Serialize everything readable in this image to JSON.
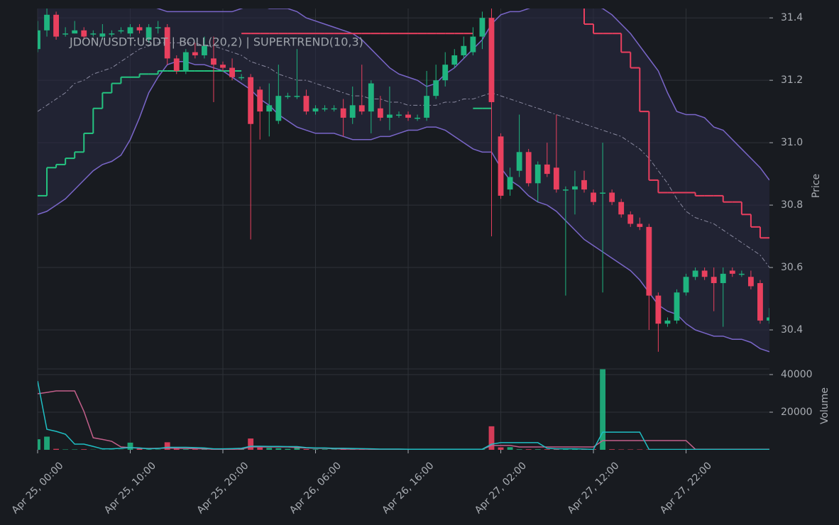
{
  "chart_data": {
    "type": "candlestick",
    "title": "JDON/USDT:USDT | BOLL(20,2) | SUPERTREND(10,3)",
    "x": [
      "Apr 25, 00:00",
      "Apr 25, 01:00",
      "Apr 25, 02:00",
      "Apr 25, 03:00",
      "Apr 25, 04:00",
      "Apr 25, 05:00",
      "Apr 25, 06:00",
      "Apr 25, 07:00",
      "Apr 25, 08:00",
      "Apr 25, 09:00",
      "Apr 25, 10:00",
      "Apr 25, 11:00",
      "Apr 25, 12:00",
      "Apr 25, 13:00",
      "Apr 25, 14:00",
      "Apr 25, 15:00",
      "Apr 25, 16:00",
      "Apr 25, 17:00",
      "Apr 25, 18:00",
      "Apr 25, 19:00",
      "Apr 25, 20:00",
      "Apr 25, 21:00",
      "Apr 25, 22:00",
      "Apr 25, 23:00",
      "Apr 26, 00:00",
      "Apr 26, 01:00",
      "Apr 26, 02:00",
      "Apr 26, 03:00",
      "Apr 26, 04:00",
      "Apr 26, 05:00",
      "Apr 26, 06:00",
      "Apr 26, 07:00",
      "Apr 26, 08:00",
      "Apr 26, 09:00",
      "Apr 26, 10:00",
      "Apr 26, 11:00",
      "Apr 26, 12:00",
      "Apr 26, 13:00",
      "Apr 26, 14:00",
      "Apr 26, 15:00",
      "Apr 26, 16:00",
      "Apr 26, 17:00",
      "Apr 26, 18:00",
      "Apr 26, 19:00",
      "Apr 26, 20:00",
      "Apr 26, 21:00",
      "Apr 26, 22:00",
      "Apr 26, 23:00",
      "Apr 27, 00:00",
      "Apr 27, 01:00",
      "Apr 27, 02:00",
      "Apr 27, 03:00",
      "Apr 27, 04:00",
      "Apr 27, 05:00",
      "Apr 27, 06:00",
      "Apr 27, 07:00",
      "Apr 27, 08:00",
      "Apr 27, 09:00",
      "Apr 27, 10:00",
      "Apr 27, 11:00",
      "Apr 27, 12:00",
      "Apr 27, 13:00",
      "Apr 27, 14:00",
      "Apr 27, 15:00",
      "Apr 27, 16:00",
      "Apr 27, 17:00",
      "Apr 27, 18:00",
      "Apr 27, 19:00",
      "Apr 27, 20:00",
      "Apr 27, 21:00",
      "Apr 27, 22:00",
      "Apr 27, 23:00",
      "Apr 28, 00:00",
      "Apr 28, 01:00",
      "Apr 28, 02:00",
      "Apr 28, 03:00",
      "Apr 28, 04:00",
      "Apr 28, 05:00",
      "Apr 28, 06:00",
      "Apr 28, 07:00"
    ],
    "open": [
      31.3,
      31.36,
      31.41,
      31.35,
      31.35,
      31.36,
      31.35,
      31.34,
      31.35,
      31.36,
      31.35,
      31.37,
      31.33,
      31.37,
      31.37,
      31.27,
      31.23,
      31.29,
      31.28,
      31.27,
      31.25,
      31.24,
      31.21,
      31.21,
      31.17,
      31.1,
      31.07,
      31.15,
      31.15,
      31.15,
      31.1,
      31.11,
      31.11,
      31.11,
      31.08,
      31.12,
      31.1,
      31.11,
      31.08,
      31.09,
      31.09,
      31.08,
      31.08,
      31.15,
      31.2,
      31.25,
      31.28,
      31.29,
      31.34,
      31.4,
      31.02,
      30.85,
      30.91,
      30.97,
      30.87,
      30.93,
      30.92,
      30.85,
      30.85,
      30.88,
      30.84,
      30.84,
      30.84,
      30.81,
      30.77,
      30.74,
      30.73,
      30.51,
      30.42,
      30.43,
      30.52,
      30.57,
      30.59,
      30.57,
      30.55,
      30.59,
      30.58,
      30.57,
      30.55,
      30.43
    ],
    "high": [
      31.39,
      31.43,
      31.42,
      31.37,
      31.39,
      31.37,
      31.36,
      31.38,
      31.36,
      31.37,
      31.38,
      31.38,
      31.38,
      31.39,
      31.38,
      31.28,
      31.3,
      31.32,
      31.34,
      31.34,
      31.26,
      31.27,
      31.22,
      31.22,
      31.18,
      31.19,
      31.25,
      31.16,
      31.3,
      31.17,
      31.12,
      31.12,
      31.12,
      31.14,
      31.18,
      31.25,
      31.2,
      31.15,
      31.18,
      31.1,
      31.1,
      31.09,
      31.23,
      31.25,
      31.29,
      31.3,
      31.34,
      31.37,
      31.42,
      31.43,
      31.03,
      30.92,
      31.09,
      30.98,
      30.94,
      31.0,
      31.09,
      30.86,
      30.91,
      30.91,
      30.85,
      31.0,
      30.85,
      30.82,
      30.78,
      30.76,
      30.74,
      30.52,
      30.44,
      30.53,
      30.58,
      30.6,
      30.6,
      30.6,
      30.6,
      30.6,
      30.59,
      30.59,
      30.56,
      30.47
    ],
    "low": [
      31.29,
      31.34,
      31.33,
      31.34,
      31.35,
      31.33,
      31.34,
      31.33,
      31.34,
      31.35,
      31.34,
      31.35,
      31.32,
      31.35,
      31.25,
      31.22,
      31.22,
      31.27,
      31.27,
      31.13,
      31.23,
      31.2,
      31.2,
      30.69,
      31.01,
      31.02,
      31.06,
      31.14,
      31.14,
      31.09,
      31.09,
      31.1,
      31.1,
      31.02,
      31.06,
      31.09,
      31.03,
      31.07,
      31.04,
      31.08,
      31.07,
      31.07,
      31.07,
      31.14,
      31.18,
      31.24,
      31.27,
      31.28,
      31.3,
      30.7,
      30.82,
      30.83,
      30.89,
      30.86,
      30.81,
      30.89,
      30.84,
      30.51,
      30.77,
      30.84,
      30.8,
      30.52,
      30.8,
      30.76,
      30.73,
      30.72,
      30.4,
      30.33,
      30.41,
      30.42,
      30.51,
      30.56,
      30.56,
      30.46,
      30.41,
      30.57,
      30.57,
      30.53,
      30.42,
      30.42
    ],
    "close": [
      31.36,
      31.41,
      31.34,
      31.35,
      31.36,
      31.34,
      31.35,
      31.35,
      31.35,
      31.36,
      31.37,
      31.36,
      31.37,
      31.37,
      31.27,
      31.23,
      31.29,
      31.28,
      31.31,
      31.25,
      31.24,
      31.21,
      31.21,
      31.06,
      31.1,
      31.12,
      31.15,
      31.15,
      31.15,
      31.1,
      31.11,
      31.11,
      31.11,
      31.08,
      31.12,
      31.1,
      31.19,
      31.08,
      31.09,
      31.09,
      31.08,
      31.08,
      31.15,
      31.2,
      31.25,
      31.28,
      31.31,
      31.34,
      31.4,
      31.13,
      30.83,
      30.89,
      30.97,
      30.87,
      30.93,
      30.9,
      30.85,
      30.85,
      30.86,
      30.85,
      30.81,
      30.84,
      30.81,
      30.77,
      30.74,
      30.73,
      30.51,
      30.42,
      30.43,
      30.52,
      30.57,
      30.59,
      30.57,
      30.55,
      30.58,
      30.58,
      30.58,
      30.54,
      30.43,
      30.44
    ],
    "up_color": "#1fb47f",
    "down_color": "#e9405e",
    "xticks": [
      "Apr 25, 00:00",
      "Apr 25, 10:00",
      "Apr 25, 20:00",
      "Apr 26, 06:00",
      "Apr 26, 16:00",
      "Apr 27, 02:00",
      "Apr 27, 12:00",
      "Apr 27, 22:00"
    ],
    "ylabel": "Price",
    "ylim": [
      30.275,
      31.43
    ],
    "yticks": [
      30.4,
      30.6,
      30.8,
      {
        "value": 31,
        "label": "31.0"
      },
      31.2,
      31.4
    ],
    "grid": true,
    "bollinger": {
      "color": "#7a66c9",
      "fill": "#2a2a44",
      "upper": [
        31.5,
        31.5,
        31.51,
        31.51,
        31.5,
        31.49,
        31.48,
        31.47,
        31.47,
        31.46,
        31.46,
        31.45,
        31.44,
        31.43,
        31.42,
        31.42,
        31.42,
        31.42,
        31.42,
        31.42,
        31.42,
        31.42,
        31.43,
        31.44,
        31.44,
        31.43,
        31.43,
        31.43,
        31.42,
        31.4,
        31.39,
        31.38,
        31.37,
        31.36,
        31.35,
        31.33,
        31.3,
        31.27,
        31.24,
        31.22,
        31.21,
        31.2,
        31.18,
        31.19,
        31.22,
        31.24,
        31.27,
        31.3,
        31.33,
        31.38,
        31.41,
        31.42,
        31.42,
        31.43,
        31.44,
        31.45,
        31.46,
        31.46,
        31.46,
        31.45,
        31.44,
        31.43,
        31.41,
        31.38,
        31.35,
        31.31,
        31.27,
        31.23,
        31.16,
        31.1,
        31.09,
        31.09,
        31.08,
        31.05,
        31.04,
        31.01,
        30.98,
        30.95,
        30.92,
        30.88
      ],
      "middle": [
        31.1,
        31.12,
        31.14,
        31.16,
        31.19,
        31.2,
        31.22,
        31.23,
        31.24,
        31.26,
        31.28,
        31.3,
        31.31,
        31.32,
        31.32,
        31.32,
        31.32,
        31.32,
        31.31,
        31.31,
        31.3,
        31.29,
        31.28,
        31.26,
        31.25,
        31.24,
        31.22,
        31.21,
        31.2,
        31.2,
        31.19,
        31.18,
        31.17,
        31.16,
        31.15,
        31.15,
        31.14,
        31.14,
        31.13,
        31.13,
        31.12,
        31.12,
        31.12,
        31.12,
        31.13,
        31.13,
        31.14,
        31.14,
        31.15,
        31.16,
        31.15,
        31.14,
        31.13,
        31.12,
        31.11,
        31.1,
        31.09,
        31.08,
        31.07,
        31.06,
        31.05,
        31.04,
        31.03,
        31.02,
        31.0,
        30.98,
        30.95,
        30.91,
        30.87,
        30.82,
        30.78,
        30.76,
        30.75,
        30.74,
        30.72,
        30.7,
        30.68,
        30.66,
        30.64,
        30.6
      ],
      "lower": [
        30.77,
        30.78,
        30.8,
        30.82,
        30.85,
        30.88,
        30.91,
        30.93,
        30.94,
        30.96,
        31.01,
        31.08,
        31.16,
        31.21,
        31.25,
        31.26,
        31.26,
        31.25,
        31.25,
        31.24,
        31.23,
        31.21,
        31.19,
        31.17,
        31.14,
        31.12,
        31.09,
        31.07,
        31.05,
        31.04,
        31.03,
        31.03,
        31.03,
        31.02,
        31.01,
        31.01,
        31.01,
        31.02,
        31.02,
        31.03,
        31.04,
        31.04,
        31.05,
        31.05,
        31.04,
        31.02,
        31.0,
        30.98,
        30.97,
        30.97,
        30.92,
        30.88,
        30.86,
        30.83,
        30.81,
        30.8,
        30.78,
        30.75,
        30.72,
        30.69,
        30.67,
        30.65,
        30.63,
        30.61,
        30.59,
        30.56,
        30.52,
        30.48,
        30.46,
        30.45,
        30.42,
        30.4,
        30.39,
        30.38,
        30.38,
        30.37,
        30.37,
        30.36,
        30.34,
        30.33
      ]
    },
    "supertrend": {
      "up_color": "#25c481",
      "down_color": "#ea3f5f",
      "up": [
        30.83,
        30.92,
        30.93,
        30.95,
        30.97,
        31.03,
        31.11,
        31.16,
        31.19,
        31.21,
        31.21,
        31.22,
        31.22,
        31.23,
        31.23,
        31.23,
        31.23,
        31.23,
        31.23,
        31.23,
        31.23,
        31.23,
        null,
        null,
        null,
        null,
        null,
        null,
        null,
        null,
        null,
        null,
        null,
        null,
        null,
        null,
        null,
        null,
        null,
        null,
        null,
        null,
        null,
        null,
        null,
        null,
        null,
        31.11,
        31.11,
        null,
        null,
        null,
        null,
        null,
        null,
        null,
        null,
        null,
        null,
        null,
        null,
        null,
        null,
        null,
        null,
        null,
        null,
        null,
        null,
        null,
        null,
        null,
        null,
        null,
        null,
        null,
        null,
        null,
        null,
        null
      ],
      "down": [
        null,
        null,
        null,
        null,
        null,
        null,
        null,
        null,
        null,
        null,
        null,
        null,
        null,
        null,
        null,
        null,
        null,
        null,
        null,
        null,
        null,
        null,
        31.35,
        31.35,
        31.35,
        31.35,
        31.35,
        31.35,
        31.35,
        31.35,
        31.35,
        31.35,
        31.35,
        31.35,
        31.35,
        31.35,
        31.35,
        31.35,
        31.35,
        31.35,
        31.35,
        31.35,
        31.35,
        31.35,
        31.35,
        31.35,
        31.35,
        null,
        null,
        null,
        31.46,
        31.46,
        31.46,
        31.46,
        31.46,
        31.46,
        31.46,
        31.46,
        31.46,
        31.38,
        31.35,
        31.35,
        31.35,
        31.29,
        31.24,
        31.1,
        30.88,
        30.84,
        30.84,
        30.84,
        30.84,
        30.83,
        30.83,
        30.83,
        30.81,
        30.81,
        30.77,
        30.73,
        30.695,
        30.695
      ]
    },
    "volume": {
      "ylabel": "Volume",
      "ylim": [
        0,
        43000
      ],
      "yticks": [
        20000,
        40000
      ],
      "values": [
        5600,
        7000,
        500,
        200,
        200,
        300,
        100,
        100,
        100,
        100,
        3800,
        600,
        200,
        200,
        4000,
        600,
        300,
        300,
        300,
        200,
        200,
        200,
        500,
        6000,
        1200,
        1000,
        800,
        500,
        1600,
        400,
        300,
        300,
        200,
        200,
        200,
        200,
        200,
        200,
        200,
        200,
        200,
        200,
        200,
        200,
        200,
        200,
        300,
        300,
        300,
        12500,
        1300,
        1400,
        300,
        300,
        300,
        300,
        300,
        300,
        300,
        300,
        300,
        43000,
        300,
        200,
        200,
        200,
        200,
        200,
        200,
        200,
        200,
        200,
        200,
        200,
        200,
        200,
        200,
        200,
        200,
        200
      ],
      "lines": [
        {
          "color": "#c25f8a",
          "values": [
            29800,
            30500,
            31300,
            31300,
            31300,
            20400,
            6400,
            5500,
            4500,
            1500,
            1200,
            800,
            700,
            800,
            900,
            800,
            700,
            600,
            500,
            300,
            300,
            300,
            400,
            1500,
            1500,
            1500,
            1500,
            1500,
            1200,
            1000,
            800,
            800,
            600,
            400,
            400,
            400,
            300,
            300,
            300,
            300,
            300,
            300,
            300,
            300,
            300,
            300,
            300,
            300,
            300,
            2300,
            2300,
            2300,
            1500,
            1500,
            1500,
            1500,
            1500,
            1500,
            1500,
            1500,
            1500,
            4900,
            4900,
            4900,
            4900,
            4900,
            4900,
            4900,
            4900,
            4900,
            4900,
            300,
            300,
            300,
            300,
            300,
            300,
            300,
            300,
            300
          ]
        },
        {
          "color": "#1fbfc4",
          "values": [
            36600,
            10900,
            9800,
            8300,
            3000,
            3000,
            1800,
            500,
            500,
            800,
            1200,
            1000,
            500,
            700,
            1300,
            1300,
            1300,
            1200,
            1000,
            500,
            500,
            600,
            800,
            1900,
            1900,
            1800,
            1800,
            1700,
            1700,
            1200,
            1000,
            1000,
            800,
            800,
            700,
            600,
            500,
            400,
            400,
            400,
            300,
            300,
            300,
            300,
            300,
            300,
            300,
            300,
            300,
            3000,
            3800,
            3800,
            3800,
            3800,
            3800,
            800,
            500,
            500,
            500,
            400,
            200,
            9400,
            9400,
            9400,
            9400,
            9400,
            200,
            200,
            200,
            200,
            200,
            200,
            200,
            200,
            200,
            200,
            200,
            200,
            200,
            200
          ]
        }
      ]
    }
  }
}
